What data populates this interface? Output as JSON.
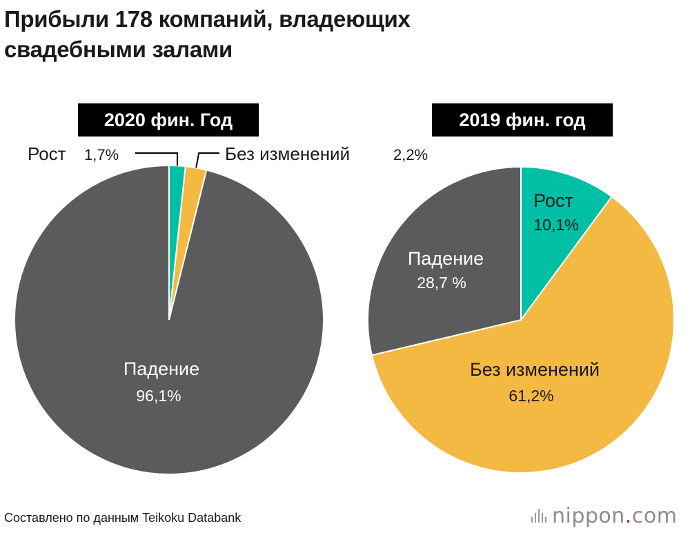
{
  "title": {
    "line1": "Прибыли 178 компаний, владеющих",
    "line2": "свадебными залами"
  },
  "colors": {
    "growth": "#00bfa5",
    "no_change": "#f4b942",
    "decline": "#5b5b5b"
  },
  "chart_data": [
    {
      "type": "pie",
      "title": "2020 фин. Год",
      "slices": [
        {
          "label": "Рост",
          "value": 1.7,
          "value_label": "1,7%"
        },
        {
          "label": "Без изменений",
          "value": 2.2,
          "value_label": "2,2%"
        },
        {
          "label": "Падение",
          "value": 96.1,
          "value_label": "96,1%"
        }
      ]
    },
    {
      "type": "pie",
      "title": "2019 фин. год",
      "slices": [
        {
          "label": "Рост",
          "value": 10.1,
          "value_label": "10,1%"
        },
        {
          "label": "Без изменений",
          "value": 61.2,
          "value_label": "61,2%"
        },
        {
          "label": "Падение",
          "value": 28.7,
          "value_label": "28,7 %"
        }
      ]
    }
  ],
  "footer": {
    "source": "Составлено по данным Teikoku Databank",
    "logo_main": "nippon",
    "logo_dot": ".",
    "logo_tld": "com"
  }
}
